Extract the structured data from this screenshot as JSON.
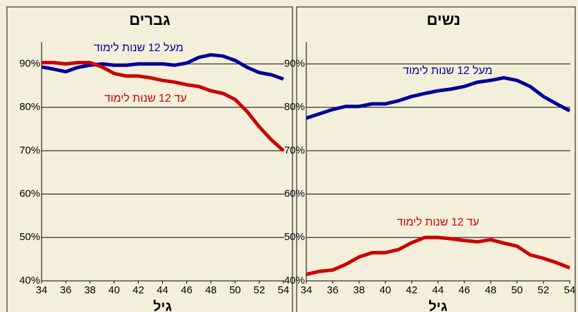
{
  "chart_data": [
    {
      "type": "line",
      "title": "גברים",
      "xlabel": "גיל",
      "x": [
        34,
        35,
        36,
        37,
        38,
        39,
        40,
        41,
        42,
        43,
        44,
        45,
        46,
        47,
        48,
        49,
        50,
        51,
        52,
        53,
        54
      ],
      "xlim": [
        34,
        54
      ],
      "xticks": [
        34,
        36,
        38,
        40,
        42,
        44,
        46,
        48,
        50,
        52,
        54
      ],
      "ylim": [
        40,
        95
      ],
      "yticks": [
        {
          "value": 40,
          "label": "40%"
        },
        {
          "value": 50,
          "label": "50%"
        },
        {
          "value": 60,
          "label": "60%"
        },
        {
          "value": 70,
          "label": "70%"
        },
        {
          "value": 80,
          "label": "80%"
        },
        {
          "value": 90,
          "label": "90%"
        }
      ],
      "grid": true,
      "series": [
        {
          "name": "מעל 12 שנות לימוד",
          "color": "#000099",
          "values": [
            89.3,
            88.8,
            88.2,
            89.2,
            89.7,
            90,
            89.7,
            89.7,
            90,
            90,
            90,
            89.7,
            90.2,
            91.5,
            92.1,
            91.8,
            90.8,
            89.2,
            88,
            87.5,
            86.5
          ]
        },
        {
          "name": "עד 12 שנות לימוד",
          "color": "#cc0000",
          "values": [
            90.3,
            90.3,
            90,
            90.3,
            90.3,
            89.3,
            87.8,
            87.2,
            87.2,
            86.8,
            86.2,
            85.8,
            85.2,
            84.8,
            83.8,
            83.2,
            81.8,
            79,
            75.5,
            72.5,
            70
          ]
        }
      ]
    },
    {
      "type": "line",
      "title": "נשים",
      "xlabel": "גיל",
      "x": [
        34,
        35,
        36,
        37,
        38,
        39,
        40,
        41,
        42,
        43,
        44,
        45,
        46,
        47,
        48,
        49,
        50,
        51,
        52,
        53,
        54
      ],
      "xlim": [
        34,
        54
      ],
      "xticks": [
        34,
        36,
        38,
        40,
        42,
        44,
        46,
        48,
        50,
        52,
        54
      ],
      "ylim": [
        40,
        95
      ],
      "yticks": [
        {
          "value": 40,
          "label": "40%"
        },
        {
          "value": 50,
          "label": "50%"
        },
        {
          "value": 60,
          "label": "60%"
        },
        {
          "value": 70,
          "label": "70%"
        },
        {
          "value": 80,
          "label": "80%"
        },
        {
          "value": 90,
          "label": "90%"
        }
      ],
      "grid": true,
      "series": [
        {
          "name": "מעל 12 שנות לימוד",
          "color": "#000099",
          "values": [
            77.5,
            78.5,
            79.5,
            80.2,
            80.2,
            80.8,
            80.8,
            81.5,
            82.5,
            83.2,
            83.8,
            84.2,
            84.8,
            85.8,
            86.2,
            86.8,
            86.2,
            84.8,
            82.5,
            80.8,
            79.2
          ]
        },
        {
          "name": "עד 12 שנות לימוד",
          "color": "#cc0000",
          "values": [
            41.5,
            42.2,
            42.5,
            43.8,
            45.5,
            46.5,
            46.5,
            47.2,
            48.8,
            50,
            50,
            49.7,
            49.3,
            49,
            49.5,
            48.7,
            48,
            46,
            45.2,
            44.2,
            43
          ]
        }
      ]
    }
  ]
}
